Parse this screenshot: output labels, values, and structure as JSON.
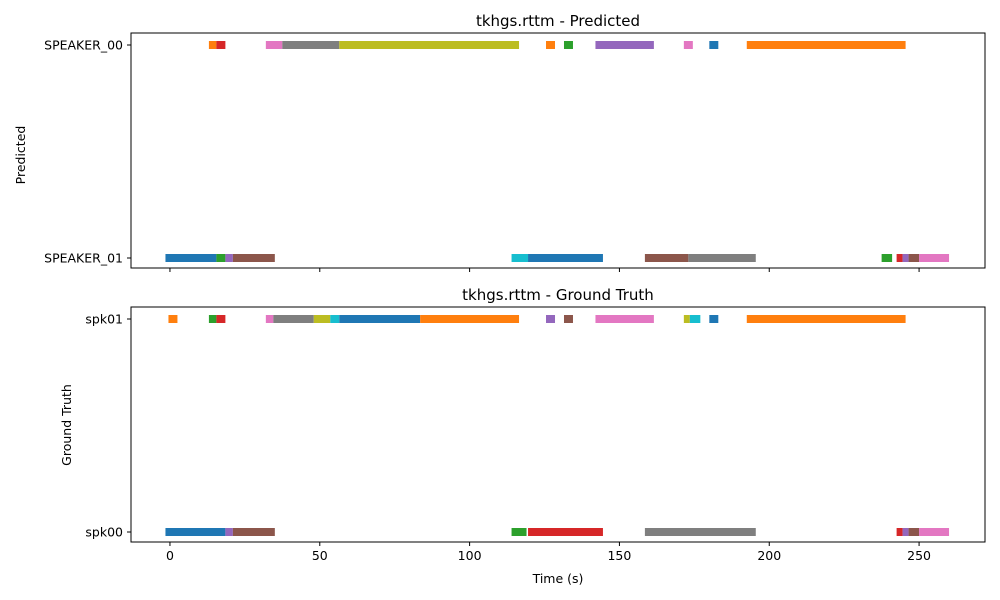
{
  "chart_data": [
    {
      "type": "timeline",
      "title": "tkhgs.rttm - Predicted",
      "ylabel": "Predicted",
      "xlabel": "",
      "xlim": [
        -13,
        272
      ],
      "x_ticks": [
        0,
        50,
        100,
        150,
        200,
        250
      ],
      "x_tick_labels_visible": false,
      "grid": false,
      "rows": [
        "SPEAKER_00",
        "SPEAKER_01"
      ],
      "segments": [
        {
          "row": 0,
          "start": 13.0,
          "end": 15.5,
          "color": "#ff7f0e"
        },
        {
          "row": 0,
          "start": 15.5,
          "end": 18.5,
          "color": "#d62728"
        },
        {
          "row": 0,
          "start": 32.0,
          "end": 37.5,
          "color": "#e377c2"
        },
        {
          "row": 0,
          "start": 37.5,
          "end": 56.5,
          "color": "#7f7f7f"
        },
        {
          "row": 0,
          "start": 56.5,
          "end": 116.5,
          "color": "#bcbd22"
        },
        {
          "row": 0,
          "start": 125.5,
          "end": 128.5,
          "color": "#ff7f0e"
        },
        {
          "row": 0,
          "start": 131.5,
          "end": 134.5,
          "color": "#2ca02c"
        },
        {
          "row": 0,
          "start": 142.0,
          "end": 161.5,
          "color": "#9467bd"
        },
        {
          "row": 0,
          "start": 171.5,
          "end": 174.5,
          "color": "#e377c2"
        },
        {
          "row": 0,
          "start": 180.0,
          "end": 183.0,
          "color": "#1f77b4"
        },
        {
          "row": 0,
          "start": 192.5,
          "end": 245.5,
          "color": "#ff7f0e"
        },
        {
          "row": 1,
          "start": -1.5,
          "end": 15.5,
          "color": "#1f77b4"
        },
        {
          "row": 1,
          "start": 15.5,
          "end": 18.5,
          "color": "#2ca02c"
        },
        {
          "row": 1,
          "start": 18.5,
          "end": 21.0,
          "color": "#9467bd"
        },
        {
          "row": 1,
          "start": 21.0,
          "end": 35.0,
          "color": "#8c564b"
        },
        {
          "row": 1,
          "start": 114.0,
          "end": 119.5,
          "color": "#17becf"
        },
        {
          "row": 1,
          "start": 119.5,
          "end": 144.5,
          "color": "#1f77b4"
        },
        {
          "row": 1,
          "start": 158.5,
          "end": 173.0,
          "color": "#8c564b"
        },
        {
          "row": 1,
          "start": 173.0,
          "end": 195.5,
          "color": "#7f7f7f"
        },
        {
          "row": 1,
          "start": 237.5,
          "end": 241.0,
          "color": "#2ca02c"
        },
        {
          "row": 1,
          "start": 242.5,
          "end": 244.5,
          "color": "#d62728"
        },
        {
          "row": 1,
          "start": 244.5,
          "end": 246.5,
          "color": "#9467bd"
        },
        {
          "row": 1,
          "start": 246.5,
          "end": 250.0,
          "color": "#8c564b"
        },
        {
          "row": 1,
          "start": 250.0,
          "end": 260.0,
          "color": "#e377c2"
        }
      ]
    },
    {
      "type": "timeline",
      "title": "tkhgs.rttm - Ground Truth",
      "ylabel": "Ground Truth",
      "xlabel": "Time (s)",
      "xlim": [
        -13,
        272
      ],
      "x_ticks": [
        0,
        50,
        100,
        150,
        200,
        250
      ],
      "x_tick_labels_visible": true,
      "grid": false,
      "rows": [
        "spk01",
        "spk00"
      ],
      "segments": [
        {
          "row": 0,
          "start": -0.5,
          "end": 2.5,
          "color": "#ff7f0e"
        },
        {
          "row": 0,
          "start": 13.0,
          "end": 15.5,
          "color": "#2ca02c"
        },
        {
          "row": 0,
          "start": 15.5,
          "end": 18.5,
          "color": "#d62728"
        },
        {
          "row": 0,
          "start": 32.0,
          "end": 34.5,
          "color": "#e377c2"
        },
        {
          "row": 0,
          "start": 34.5,
          "end": 48.0,
          "color": "#7f7f7f"
        },
        {
          "row": 0,
          "start": 48.0,
          "end": 53.5,
          "color": "#bcbd22"
        },
        {
          "row": 0,
          "start": 53.5,
          "end": 56.5,
          "color": "#17becf"
        },
        {
          "row": 0,
          "start": 56.5,
          "end": 83.5,
          "color": "#1f77b4"
        },
        {
          "row": 0,
          "start": 83.5,
          "end": 116.5,
          "color": "#ff7f0e"
        },
        {
          "row": 0,
          "start": 125.5,
          "end": 128.5,
          "color": "#9467bd"
        },
        {
          "row": 0,
          "start": 131.5,
          "end": 134.5,
          "color": "#8c564b"
        },
        {
          "row": 0,
          "start": 142.0,
          "end": 161.5,
          "color": "#e377c2"
        },
        {
          "row": 0,
          "start": 171.5,
          "end": 173.5,
          "color": "#bcbd22"
        },
        {
          "row": 0,
          "start": 173.5,
          "end": 177.0,
          "color": "#17becf"
        },
        {
          "row": 0,
          "start": 180.0,
          "end": 183.0,
          "color": "#1f77b4"
        },
        {
          "row": 0,
          "start": 192.5,
          "end": 245.5,
          "color": "#ff7f0e"
        },
        {
          "row": 1,
          "start": -1.5,
          "end": 18.5,
          "color": "#1f77b4"
        },
        {
          "row": 1,
          "start": 18.5,
          "end": 21.0,
          "color": "#9467bd"
        },
        {
          "row": 1,
          "start": 21.0,
          "end": 35.0,
          "color": "#8c564b"
        },
        {
          "row": 1,
          "start": 114.0,
          "end": 119.0,
          "color": "#2ca02c"
        },
        {
          "row": 1,
          "start": 119.5,
          "end": 144.5,
          "color": "#d62728"
        },
        {
          "row": 1,
          "start": 158.5,
          "end": 195.5,
          "color": "#7f7f7f"
        },
        {
          "row": 1,
          "start": 242.5,
          "end": 244.5,
          "color": "#d62728"
        },
        {
          "row": 1,
          "start": 244.5,
          "end": 246.5,
          "color": "#9467bd"
        },
        {
          "row": 1,
          "start": 246.5,
          "end": 250.0,
          "color": "#8c564b"
        },
        {
          "row": 1,
          "start": 250.0,
          "end": 260.0,
          "color": "#e377c2"
        }
      ]
    }
  ]
}
